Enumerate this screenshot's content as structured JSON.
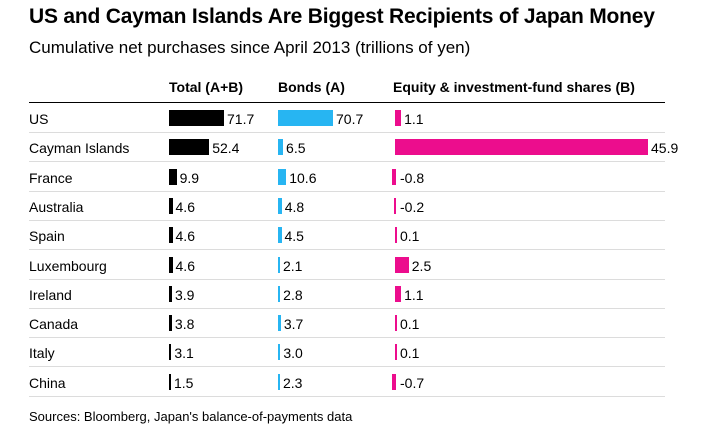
{
  "title": "US and Cayman Islands Are Biggest Recipients of Japan Money",
  "subtitle": "Cumulative net purchases since April 2013 (trillions of yen)",
  "source": "Sources: Bloomberg, Japan's balance-of-payments data",
  "colors": {
    "total": "#000000",
    "bonds": "#27b5f2",
    "equity": "#ec0d8d"
  },
  "chart_data": {
    "type": "table",
    "columns": [
      "Total (A+B)",
      "Bonds (A)",
      "Equity & investment-fund shares (B)"
    ],
    "rows": [
      {
        "country": "US",
        "total": "71.7",
        "bonds": "70.7",
        "equity": "1.1"
      },
      {
        "country": "Cayman Islands",
        "total": "52.4",
        "bonds": "6.5",
        "equity": "45.9"
      },
      {
        "country": "France",
        "total": "9.9",
        "bonds": "10.6",
        "equity": "-0.8"
      },
      {
        "country": "Australia",
        "total": "4.6",
        "bonds": "4.8",
        "equity": "-0.2"
      },
      {
        "country": "Spain",
        "total": "4.6",
        "bonds": "4.5",
        "equity": "0.1"
      },
      {
        "country": "Luxembourg",
        "total": "4.6",
        "bonds": "2.1",
        "equity": "2.5"
      },
      {
        "country": "Ireland",
        "total": "3.9",
        "bonds": "2.8",
        "equity": "1.1"
      },
      {
        "country": "Canada",
        "total": "3.8",
        "bonds": "3.7",
        "equity": "0.1"
      },
      {
        "country": "Italy",
        "total": "3.1",
        "bonds": "3.0",
        "equity": "0.1"
      },
      {
        "country": "China",
        "total": "1.5",
        "bonds": "2.3",
        "equity": "-0.7"
      }
    ]
  }
}
